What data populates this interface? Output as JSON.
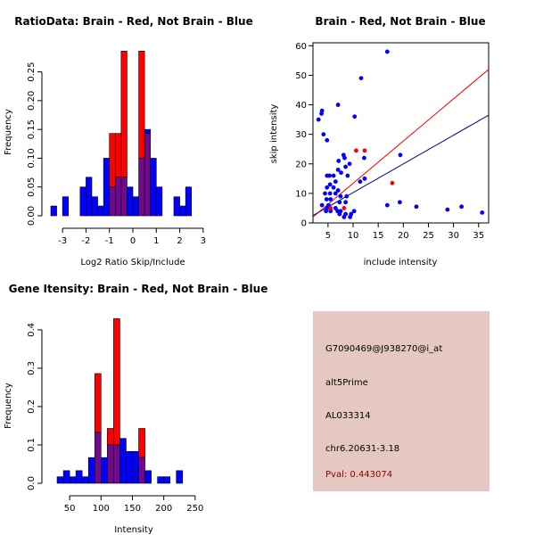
{
  "colors": {
    "brain": "#ff0000",
    "not_brain": "#0000ff",
    "overlap": "#700a8c",
    "panel_bg": "#e6c8c2",
    "pval": "#8b0000"
  },
  "chart_data": [
    {
      "type": "bar",
      "title": "RatioData: Brain - Red, Not Brain - Blue",
      "xlabel": "Log2 Ratio Skip/Include",
      "ylabel": "Frequency",
      "bin_width": 0.25,
      "bin_start": -3.5,
      "xlim": [
        -3.5,
        3.5
      ],
      "ylim": [
        0,
        0.285
      ],
      "xticks": [
        -3,
        -2,
        -1,
        0,
        1,
        2,
        3
      ],
      "yticks": [
        0.0,
        0.05,
        0.1,
        0.15,
        0.2,
        0.25
      ],
      "ytick_labels": [
        "0.00",
        "0.05",
        "0.10",
        "0.15",
        "0.20",
        "0.25"
      ],
      "series": [
        {
          "name": "Not Brain",
          "color": "#0000ff",
          "values": [
            0.017,
            0,
            0.033,
            0,
            0,
            0.05,
            0.067,
            0.033,
            0.017,
            0.1,
            0.05,
            0.067,
            0.067,
            0.05,
            0.033,
            0.1,
            0.15,
            0.1,
            0.05,
            0,
            0,
            0.033,
            0.017,
            0.05
          ]
        },
        {
          "name": "Brain",
          "color": "#ff0000",
          "values": [
            0,
            0,
            0,
            0,
            0,
            0,
            0,
            0,
            0,
            0,
            0.143,
            0.143,
            0.286,
            0,
            0,
            0.286,
            0.143,
            0,
            0,
            0,
            0,
            0,
            0,
            0
          ]
        }
      ]
    },
    {
      "type": "scatter",
      "title": "Brain - Red, Not Brain - Blue",
      "xlabel": "include intensity",
      "ylabel": "skip intensity",
      "xlim": [
        2,
        37
      ],
      "ylim": [
        0,
        61
      ],
      "xticks": [
        5,
        10,
        15,
        20,
        25,
        30,
        35
      ],
      "yticks": [
        0,
        10,
        20,
        30,
        40,
        50,
        60
      ],
      "lines": [
        {
          "name": "Brain fit",
          "color": "#ff0000",
          "x": [
            2,
            37
          ],
          "y": [
            2.0,
            52.0
          ]
        },
        {
          "name": "Not Brain fit",
          "color": "#00008b",
          "x": [
            2,
            37
          ],
          "y": [
            2.5,
            36.5
          ]
        }
      ],
      "series": [
        {
          "name": "Not Brain",
          "color": "#0000ff",
          "points": [
            [
              16.8,
              58
            ],
            [
              11.6,
              49
            ],
            [
              7,
              40
            ],
            [
              3.8,
              38
            ],
            [
              3.7,
              37
            ],
            [
              3.1,
              35
            ],
            [
              10.3,
              36
            ],
            [
              4.1,
              30
            ],
            [
              4.8,
              28
            ],
            [
              8.1,
              23
            ],
            [
              8.3,
              22
            ],
            [
              7.1,
              21
            ],
            [
              9.3,
              20
            ],
            [
              8.5,
              19
            ],
            [
              7,
              18
            ],
            [
              19.4,
              23
            ],
            [
              12.2,
              22
            ],
            [
              7.6,
              17
            ],
            [
              6.1,
              16
            ],
            [
              8.9,
              16
            ],
            [
              5.3,
              16
            ],
            [
              4.8,
              16
            ],
            [
              6.5,
              14
            ],
            [
              11.4,
              14
            ],
            [
              12.3,
              15
            ],
            [
              5.4,
              13
            ],
            [
              4.8,
              12
            ],
            [
              6.1,
              12
            ],
            [
              7,
              11
            ],
            [
              4.4,
              10
            ],
            [
              6.5,
              10
            ],
            [
              5.4,
              10
            ],
            [
              7.5,
              9
            ],
            [
              8.7,
              9
            ],
            [
              5.5,
              8
            ],
            [
              4.7,
              8
            ],
            [
              7.3,
              7
            ],
            [
              8.5,
              7
            ],
            [
              3.8,
              6
            ],
            [
              5.1,
              6
            ],
            [
              4.8,
              5
            ],
            [
              6.5,
              5
            ],
            [
              5.5,
              4
            ],
            [
              6.9,
              4
            ],
            [
              4.6,
              4
            ],
            [
              7.5,
              4
            ],
            [
              8.5,
              3
            ],
            [
              9.6,
              3
            ],
            [
              7.3,
              3
            ],
            [
              8.2,
              2
            ],
            [
              9.4,
              2
            ],
            [
              10.2,
              4
            ],
            [
              16.8,
              6
            ],
            [
              19.3,
              7
            ],
            [
              22.6,
              5.5
            ],
            [
              28.8,
              4.5
            ],
            [
              31.6,
              5.5
            ],
            [
              35.7,
              3.5
            ]
          ]
        },
        {
          "name": "Brain",
          "color": "#ff0000",
          "points": [
            [
              10.6,
              24.5
            ],
            [
              12.3,
              24.5
            ],
            [
              17.8,
              13.5
            ],
            [
              5.5,
              5
            ],
            [
              8.2,
              5
            ]
          ]
        }
      ]
    },
    {
      "type": "bar",
      "title": "Gene Itensity: Brain - Red, Not Brain - Blue",
      "xlabel": "Intensity",
      "ylabel": "Frequency",
      "bin_width": 10,
      "bin_start": 30,
      "xlim": [
        20,
        290
      ],
      "ylim": [
        0,
        0.43
      ],
      "xticks": [
        50,
        100,
        150,
        200,
        250
      ],
      "yticks": [
        0.0,
        0.1,
        0.2,
        0.3,
        0.4
      ],
      "ytick_labels": [
        "0.0",
        "0.1",
        "0.2",
        "0.3",
        "0.4"
      ],
      "series": [
        {
          "name": "Not Brain",
          "color": "#0000ff",
          "values": [
            0.017,
            0.033,
            0.017,
            0.033,
            0.017,
            0.067,
            0.133,
            0.067,
            0.1,
            0.1,
            0.117,
            0.083,
            0.083,
            0.067,
            0.033,
            0,
            0.017,
            0.017,
            0,
            0.033
          ]
        },
        {
          "name": "Brain",
          "color": "#ff0000",
          "values": [
            0,
            0,
            0,
            0,
            0,
            0,
            0.286,
            0,
            0.143,
            0.429,
            0,
            0,
            0,
            0.143,
            0,
            0,
            0,
            0,
            0,
            0
          ]
        }
      ]
    }
  ],
  "info": {
    "probe": "G7090469@J938270@i_at",
    "type": "alt5Prime",
    "accession": "AL033314",
    "location": "chr6.20631-3.18",
    "pval": "Pval: 0.443074"
  }
}
